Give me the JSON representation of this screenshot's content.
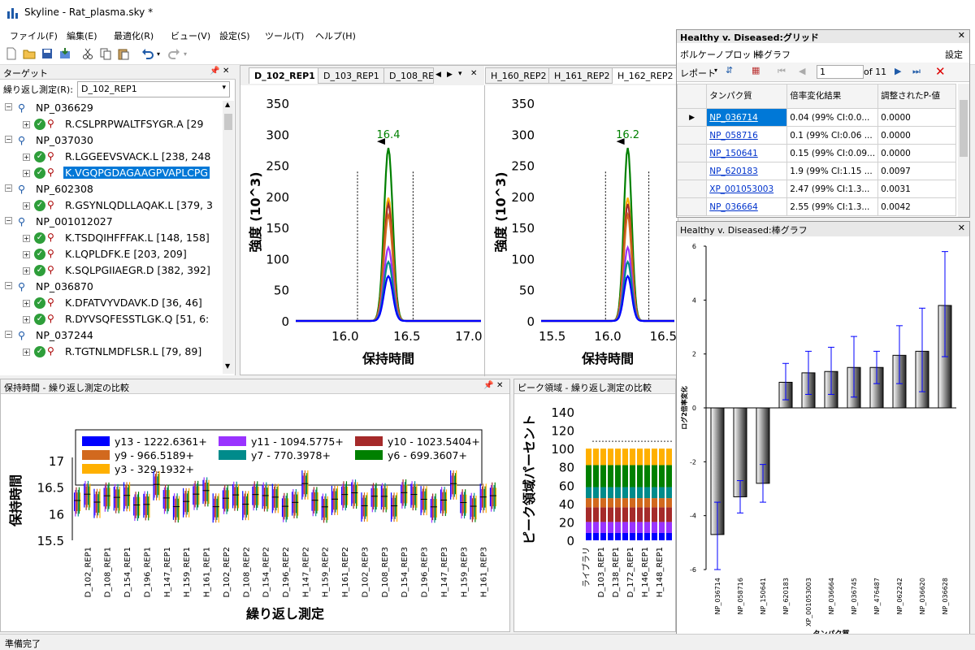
{
  "window": {
    "title": "Skyline - Rat_plasma.sky *"
  },
  "menu": [
    "ファイル(F)",
    "編集(E)",
    "最適化(R)",
    "ビュー(V)",
    "設定(S)",
    "ツール(T)",
    "ヘルプ(H)"
  ],
  "targets": {
    "title": "ターゲット",
    "replicate_label": "繰り返し測定(R):",
    "replicate_value": "D_102_REP1",
    "rows": [
      {
        "type": "protein",
        "text": "NP_036629"
      },
      {
        "type": "peptide",
        "text": "R.CSLPRPWALTFSYGR.A [29"
      },
      {
        "type": "protein",
        "text": "NP_037030"
      },
      {
        "type": "peptide",
        "text": "R.LGGEEVSVACK.L [238, 248"
      },
      {
        "type": "peptide",
        "text": "K.VGQPGDAGAAGPVAPLCPG",
        "selected": true
      },
      {
        "type": "protein",
        "text": "NP_602308"
      },
      {
        "type": "peptide",
        "text": "R.GSYNLQDLLAQAK.L [379, 3"
      },
      {
        "type": "protein",
        "text": "NP_001012027"
      },
      {
        "type": "peptide",
        "text": "K.TSDQIHFFFAK.L [148, 158]"
      },
      {
        "type": "peptide",
        "text": "K.LQPLDFK.E [203, 209]"
      },
      {
        "type": "peptide",
        "text": "K.SQLPGIIAEGR.D [382, 392]"
      },
      {
        "type": "protein",
        "text": "NP_036870"
      },
      {
        "type": "peptide",
        "text": "K.DFATVYVDAVK.D [36, 46]"
      },
      {
        "type": "peptide",
        "text": "R.DYVSQFESSTLGK.Q [51, 6:"
      },
      {
        "type": "protein",
        "text": "NP_037244"
      },
      {
        "type": "peptide",
        "text": "R.TGTNLMDFLSR.L [79, 89]"
      }
    ]
  },
  "chrom_tabs": {
    "left": [
      "D_102_REP1",
      "D_103_REP1",
      "D_108_RE"
    ],
    "right": [
      "H_160_REP2",
      "H_161_REP2",
      "H_162_REP2"
    ]
  },
  "chrom1": {
    "peak_label": "16.4",
    "ylabel": "強度 (10^3)",
    "xlabel": "保持時間",
    "yticks": [
      "350",
      "300",
      "250",
      "200",
      "150",
      "100",
      "50",
      "0"
    ],
    "xticks": [
      "16.0",
      "16.5",
      "17.0"
    ]
  },
  "chrom2": {
    "peak_label": "16.2",
    "ylabel": "強度 (10^3)",
    "xlabel": "保持時間",
    "yticks": [
      "350",
      "300",
      "250",
      "200",
      "150",
      "100",
      "50",
      "0"
    ],
    "xticks": [
      "15.5",
      "16.0",
      "16.5"
    ]
  },
  "rt_panel": {
    "title": "保持時間 - 繰り返し測定の比較",
    "ylabel": "保持時間",
    "xlabel": "繰り返し測定",
    "yticks": [
      "17",
      "16.5",
      "16",
      "15.5"
    ],
    "legend": [
      {
        "label": "y13 - 1222.6361+",
        "color": "#0000ff"
      },
      {
        "label": "y11 - 1094.5775+",
        "color": "#9933ff"
      },
      {
        "label": "y10 - 1023.5404+",
        "color": "#a52a2a"
      },
      {
        "label": "y9 - 966.5189+",
        "color": "#d2691e"
      },
      {
        "label": "y7 - 770.3978+",
        "color": "#008b8b"
      },
      {
        "label": "y6 - 699.3607+",
        "color": "#008000"
      },
      {
        "label": "y3 - 329.1932+",
        "color": "#ffb000"
      }
    ],
    "replicates": [
      "D_102_REP1",
      "D_108_REP1",
      "D_154_REP1",
      "D_196_REP1",
      "H_147_REP1",
      "H_159_REP1",
      "H_161_REP1",
      "D_102_REP2",
      "D_108_REP2",
      "D_154_REP2",
      "D_196_REP2",
      "H_147_REP2",
      "H_159_REP2",
      "H_161_REP2",
      "D_102_REP3",
      "D_108_REP3",
      "D_154_REP3",
      "D_196_REP3",
      "H_147_REP3",
      "H_159_REP3",
      "H_161_REP3"
    ]
  },
  "peak_panel": {
    "title": "ピーク領域 - 繰り返し測定の比較",
    "ylabel": "ピーク領域パーセント",
    "yticks": [
      "140",
      "120",
      "100",
      "80",
      "60",
      "40",
      "20",
      "0"
    ],
    "xlabels": [
      "ライブラリ",
      "D_103_REP1",
      "D_138_REP1",
      "D_172_REP1",
      "H_146_REP1",
      "H_148_REP1"
    ]
  },
  "grid_window": {
    "title": "Healthy v. Diseased:グリッド",
    "menu": [
      "ボルケーノプロット",
      "棒グラフ"
    ],
    "settings": "設定",
    "report": "レポート",
    "page": "1",
    "of": "of 11",
    "headers": [
      "タンパク質",
      "倍率変化結果",
      "調整されたP-値"
    ],
    "rows": [
      {
        "protein": "NP_036714",
        "fc": "0.04 (99% CI:0.0...",
        "p": "0.0000"
      },
      {
        "protein": "NP_058716",
        "fc": "0.1 (99% CI:0.06 ...",
        "p": "0.0000"
      },
      {
        "protein": "NP_150641",
        "fc": "0.15 (99% CI:0.09...",
        "p": "0.0000"
      },
      {
        "protein": "NP_620183",
        "fc": "1.9 (99% CI:1.15 ...",
        "p": "0.0097"
      },
      {
        "protein": "XP_001053003",
        "fc": "2.47 (99% CI:1.3...",
        "p": "0.0031"
      },
      {
        "protein": "NP_036664",
        "fc": "2.55 (99% CI:1.3...",
        "p": "0.0042"
      }
    ]
  },
  "bar_window": {
    "title": "Healthy v. Diseased:棒グラフ"
  },
  "chart_data": {
    "type": "bar",
    "title": "",
    "xlabel": "タンパク質",
    "ylabel": "ログ2倍率変化",
    "ylim": [
      -6,
      6
    ],
    "yticks": [
      "6",
      "4",
      "2",
      "0",
      "-2",
      "-4",
      "-6"
    ],
    "categories": [
      "NP_036714",
      "NP_058716",
      "NP_150641",
      "NP_620183",
      "XP_001053003",
      "NP_036664",
      "NP_036745",
      "NP_476487",
      "NP_062242",
      "NP_036620",
      "NP_036628"
    ],
    "values": [
      -4.7,
      -3.3,
      -2.8,
      0.95,
      1.3,
      1.35,
      1.5,
      1.5,
      1.95,
      2.1,
      3.8
    ],
    "err_low": [
      -6.0,
      -3.9,
      -3.5,
      0.3,
      0.5,
      0.5,
      0.4,
      0.9,
      0.9,
      0.6,
      1.9
    ],
    "err_high": [
      -3.5,
      -2.7,
      -2.1,
      1.65,
      2.1,
      2.25,
      2.65,
      2.1,
      3.05,
      3.7,
      5.8
    ]
  },
  "status": "準備完了"
}
